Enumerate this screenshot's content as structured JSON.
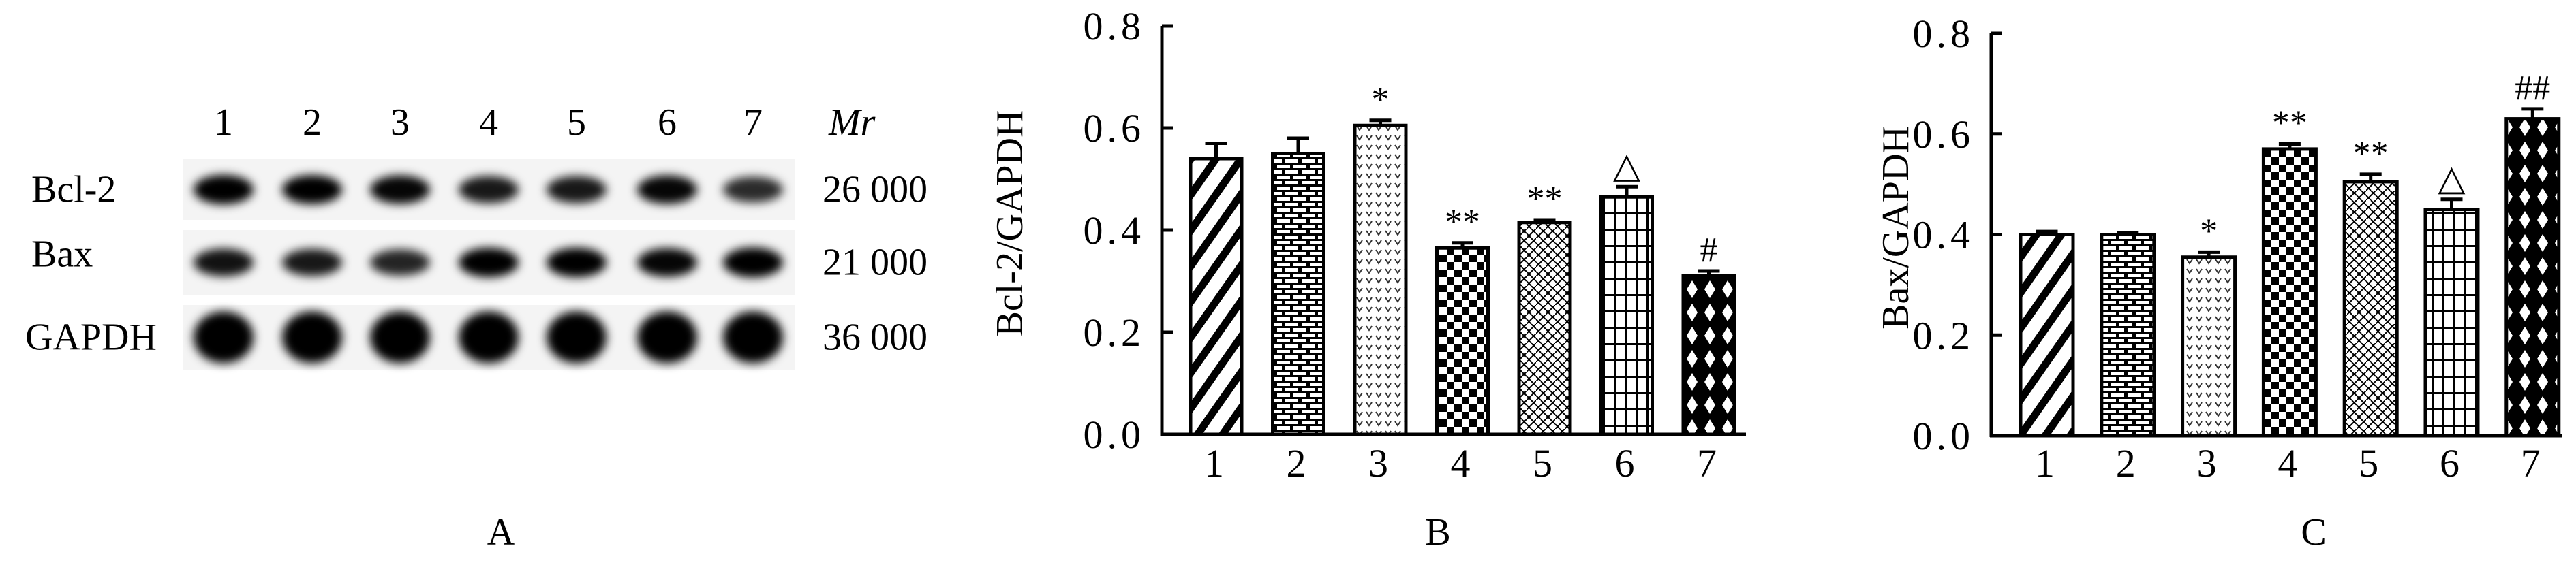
{
  "panel_a": {
    "panel_label": "A",
    "lane_labels": [
      "1",
      "2",
      "3",
      "4",
      "5",
      "6",
      "7"
    ],
    "mr_header": "Mr",
    "rows": [
      {
        "protein": "Bcl-2",
        "mr": "26 000"
      },
      {
        "protein": "Bax",
        "mr": "21 000"
      },
      {
        "protein": "GAPDH",
        "mr": "36 000"
      }
    ]
  },
  "chart_data": [
    {
      "type": "bar",
      "panel_label": "B",
      "categories": [
        "1",
        "2",
        "3",
        "4",
        "5",
        "6",
        "7"
      ],
      "values": [
        0.54,
        0.55,
        0.605,
        0.365,
        0.415,
        0.465,
        0.31
      ],
      "errors": [
        0.03,
        0.03,
        0.01,
        0.01,
        0.005,
        0.02,
        0.01
      ],
      "annotations": [
        "",
        "",
        "*",
        "**",
        "**",
        "△",
        "#"
      ],
      "patterns": [
        "diagonal",
        "brick",
        "dots",
        "checker",
        "weave",
        "grid",
        "diamond"
      ],
      "ylabel": "Bcl-2/GAPDH",
      "xlabel": "",
      "ylim": [
        0,
        0.8
      ],
      "yticks": [
        "0.0",
        "0.2",
        "0.4",
        "0.6",
        "0.8"
      ],
      "grid": false
    },
    {
      "type": "bar",
      "panel_label": "C",
      "categories": [
        "1",
        "2",
        "3",
        "4",
        "5",
        "6",
        "7"
      ],
      "values": [
        0.4,
        0.4,
        0.355,
        0.57,
        0.505,
        0.45,
        0.63
      ],
      "errors": [
        0.006,
        0.004,
        0.01,
        0.01,
        0.015,
        0.02,
        0.02
      ],
      "annotations": [
        "",
        "",
        "*",
        "**",
        "**",
        "△",
        "##"
      ],
      "patterns": [
        "diagonal",
        "brick",
        "dots",
        "checker",
        "weave",
        "grid",
        "diamond"
      ],
      "ylabel": "Bax/GAPDH",
      "xlabel": "",
      "ylim": [
        0,
        0.8
      ],
      "yticks": [
        "0.0",
        "0.2",
        "0.4",
        "0.6",
        "0.8"
      ],
      "grid": false
    }
  ]
}
